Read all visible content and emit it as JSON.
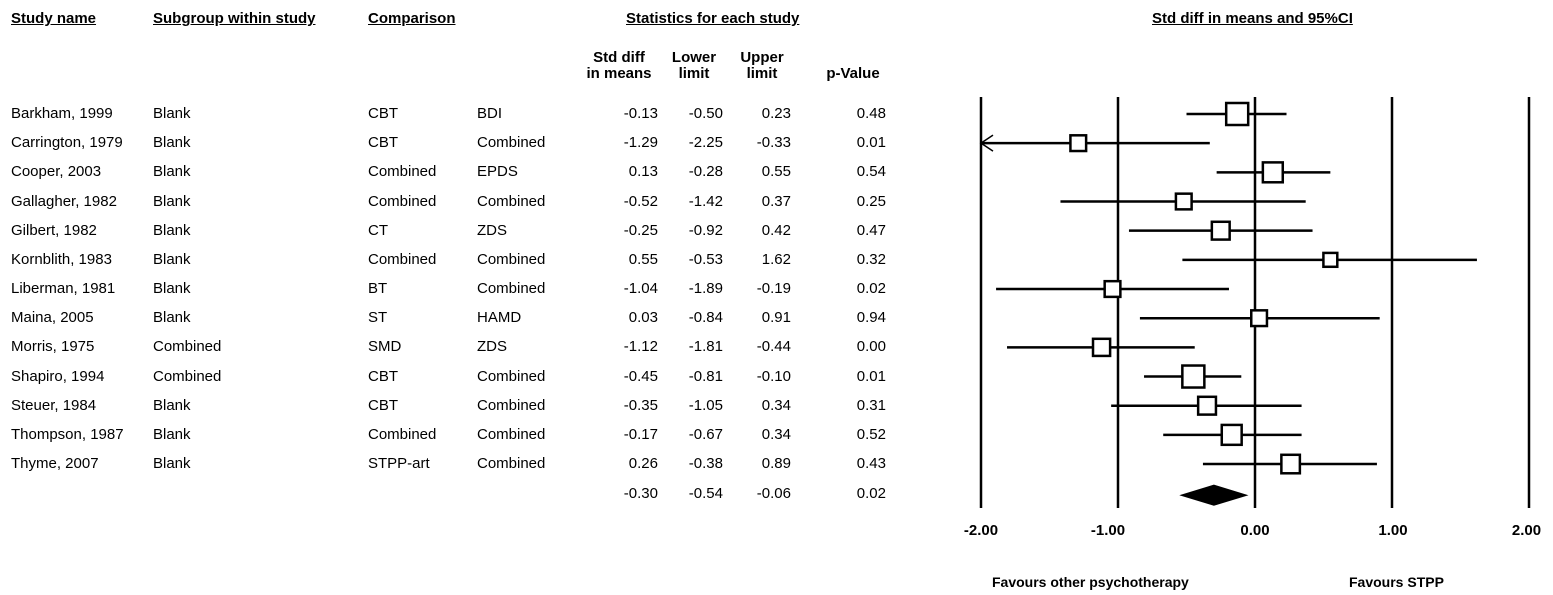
{
  "headers": {
    "study_name": "Study name",
    "subgroup": "Subgroup within study",
    "comparison": "Comparison",
    "statistics": "Statistics for each study",
    "forest": "Std diff in means and 95%CI"
  },
  "stat_columns": {
    "std_diff_l1": "Std diff",
    "std_diff_l2": "in means",
    "lower_l1": "Lower",
    "lower_l2": "limit",
    "upper_l1": "Upper",
    "upper_l2": "limit",
    "pvalue": "p-Value"
  },
  "rows": [
    {
      "study": "Barkham, 1999",
      "subgroup": "Blank",
      "comparison": "CBT",
      "outcome": "BDI",
      "smd": "-0.13",
      "lower": "-0.50",
      "upper": "0.23",
      "p": "0.48"
    },
    {
      "study": "Carrington, 1979",
      "subgroup": "Blank",
      "comparison": "CBT",
      "outcome": "Combined",
      "smd": "-1.29",
      "lower": "-2.25",
      "upper": "-0.33",
      "p": "0.01"
    },
    {
      "study": "Cooper, 2003",
      "subgroup": "Blank",
      "comparison": "Combined",
      "outcome": "EPDS",
      "smd": "0.13",
      "lower": "-0.28",
      "upper": "0.55",
      "p": "0.54"
    },
    {
      "study": "Gallagher, 1982",
      "subgroup": "Blank",
      "comparison": "Combined",
      "outcome": "Combined",
      "smd": "-0.52",
      "lower": "-1.42",
      "upper": "0.37",
      "p": "0.25"
    },
    {
      "study": "Gilbert, 1982",
      "subgroup": "Blank",
      "comparison": "CT",
      "outcome": "ZDS",
      "smd": "-0.25",
      "lower": "-0.92",
      "upper": "0.42",
      "p": "0.47"
    },
    {
      "study": "Kornblith, 1983",
      "subgroup": "Blank",
      "comparison": "Combined",
      "outcome": "Combined",
      "smd": "0.55",
      "lower": "-0.53",
      "upper": "1.62",
      "p": "0.32"
    },
    {
      "study": "Liberman, 1981",
      "subgroup": "Blank",
      "comparison": "BT",
      "outcome": "Combined",
      "smd": "-1.04",
      "lower": "-1.89",
      "upper": "-0.19",
      "p": "0.02"
    },
    {
      "study": "Maina, 2005",
      "subgroup": "Blank",
      "comparison": "ST",
      "outcome": "HAMD",
      "smd": "0.03",
      "lower": "-0.84",
      "upper": "0.91",
      "p": "0.94"
    },
    {
      "study": "Morris, 1975",
      "subgroup": "Combined",
      "comparison": "SMD",
      "outcome": "ZDS",
      "smd": "-1.12",
      "lower": "-1.81",
      "upper": "-0.44",
      "p": "0.00"
    },
    {
      "study": "Shapiro, 1994",
      "subgroup": "Combined",
      "comparison": "CBT",
      "outcome": "Combined",
      "smd": "-0.45",
      "lower": "-0.81",
      "upper": "-0.10",
      "p": "0.01"
    },
    {
      "study": "Steuer, 1984",
      "subgroup": "Blank",
      "comparison": "CBT",
      "outcome": "Combined",
      "smd": "-0.35",
      "lower": "-1.05",
      "upper": "0.34",
      "p": "0.31"
    },
    {
      "study": "Thompson, 1987",
      "subgroup": "Blank",
      "comparison": "Combined",
      "outcome": "Combined",
      "smd": "-0.17",
      "lower": "-0.67",
      "upper": "0.34",
      "p": "0.52"
    },
    {
      "study": "Thyme, 2007",
      "subgroup": "Blank",
      "comparison": "STPP-art",
      "outcome": "Combined",
      "smd": "0.26",
      "lower": "-0.38",
      "upper": "0.89",
      "p": "0.43"
    }
  ],
  "summary": {
    "smd": "-0.30",
    "lower": "-0.54",
    "upper": "-0.06",
    "p": "0.02"
  },
  "axis": {
    "ticks": [
      "-2.00",
      "-1.00",
      "0.00",
      "1.00",
      "2.00"
    ],
    "favours_left": "Favours other psychotherapy",
    "favours_right": "Favours STPP"
  },
  "chart_data": {
    "type": "forest",
    "title": "Std diff in means and 95%CI",
    "xlim": [
      -2,
      2
    ],
    "xticks": [
      -2,
      -1,
      0,
      1,
      2
    ],
    "studies": [
      {
        "name": "Barkham, 1999",
        "effect": -0.13,
        "lower": -0.5,
        "upper": 0.23,
        "weight": 1.0
      },
      {
        "name": "Carrington, 1979",
        "effect": -1.29,
        "lower": -2.25,
        "upper": -0.33,
        "weight": 0.55,
        "arrow_left": true
      },
      {
        "name": "Cooper, 2003",
        "effect": 0.13,
        "lower": -0.28,
        "upper": 0.55,
        "weight": 0.85
      },
      {
        "name": "Gallagher, 1982",
        "effect": -0.52,
        "lower": -1.42,
        "upper": 0.37,
        "weight": 0.55
      },
      {
        "name": "Gilbert, 1982",
        "effect": -0.25,
        "lower": -0.92,
        "upper": 0.42,
        "weight": 0.7
      },
      {
        "name": "Kornblith, 1983",
        "effect": 0.55,
        "lower": -0.53,
        "upper": 1.62,
        "weight": 0.42
      },
      {
        "name": "Liberman, 1981",
        "effect": -1.04,
        "lower": -1.89,
        "upper": -0.19,
        "weight": 0.55
      },
      {
        "name": "Maina, 2005",
        "effect": 0.03,
        "lower": -0.84,
        "upper": 0.91,
        "weight": 0.55
      },
      {
        "name": "Morris, 1975",
        "effect": -1.12,
        "lower": -1.81,
        "upper": -0.44,
        "weight": 0.65
      },
      {
        "name": "Shapiro, 1994",
        "effect": -0.45,
        "lower": -0.81,
        "upper": -0.1,
        "weight": 1.0
      },
      {
        "name": "Steuer, 1984",
        "effect": -0.35,
        "lower": -1.05,
        "upper": 0.34,
        "weight": 0.7
      },
      {
        "name": "Thompson, 1987",
        "effect": -0.17,
        "lower": -0.67,
        "upper": 0.34,
        "weight": 0.85
      },
      {
        "name": "Thyme, 2007",
        "effect": 0.26,
        "lower": -0.38,
        "upper": 0.89,
        "weight": 0.75
      }
    ],
    "summary": {
      "effect": -0.3,
      "lower": -0.54,
      "upper": -0.06
    },
    "xlabel_left": "Favours other psychotherapy",
    "xlabel_right": "Favours STPP",
    "grid": false
  }
}
